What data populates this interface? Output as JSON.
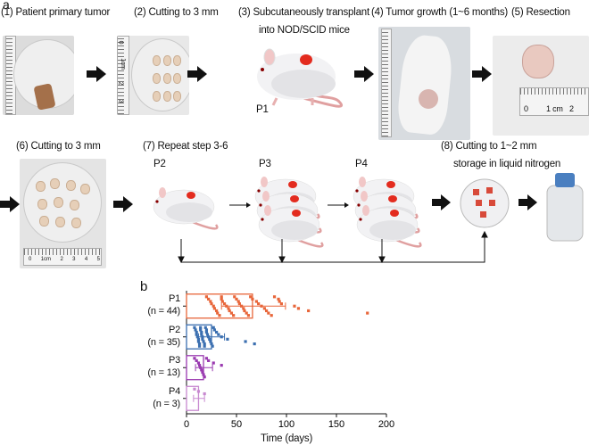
{
  "panel_a": {
    "label": "a",
    "steps": {
      "s1": "(1) Patient primary tumor",
      "s2": "(2) Cutting to 3 mm",
      "s3_line1": "(3) Subcutaneously transplant",
      "s3_line2": "into NOD/SCID mice",
      "s4": "(4) Tumor growth (1~6 months)",
      "s5": "(5) Resection",
      "s6": "(6) Cutting to 3 mm",
      "s7": "(7) Repeat step 3-6",
      "s8_line1": "(8) Cutting to 1~2 mm",
      "s8_line2": "storage in liquid nitrogen"
    },
    "passages": {
      "p1": "P1",
      "p2": "P2",
      "p3": "P3",
      "p4": "P4"
    },
    "ruler_labels": {
      "r5_0": "0",
      "r5_1": "1 cm",
      "r5_2": "2",
      "r2_0": "0",
      "r2_1": "1cm",
      "r2_2": "2",
      "r2_3": "3",
      "r6": [
        "0",
        "1cm",
        "2",
        "3",
        "4",
        "5"
      ]
    }
  },
  "chart_data": {
    "panel_label": "b",
    "type": "bar",
    "orientation": "horizontal",
    "xlabel": "Time (days)",
    "xlim": [
      0,
      200
    ],
    "xticks": [
      "0",
      "50",
      "100",
      "150",
      "200"
    ],
    "categories": [
      {
        "name": "P1",
        "n_label": "(n = 44)",
        "color": "#e8663a",
        "mean": 66,
        "err": [
          35,
          99
        ],
        "points": [
          20,
          22,
          24,
          25,
          27,
          28,
          30,
          31,
          33,
          35,
          35,
          36,
          38,
          40,
          42,
          43,
          45,
          47,
          48,
          50,
          52,
          53,
          55,
          57,
          58,
          60,
          62,
          64,
          66,
          70,
          72,
          75,
          78,
          80,
          82,
          85,
          88,
          92,
          93,
          95,
          108,
          112,
          122,
          181
        ]
      },
      {
        "name": "P2",
        "n_label": "(n = 35)",
        "color": "#3b6fb0",
        "mean": 25,
        "err": [
          12,
          38
        ],
        "points": [
          8,
          9,
          10,
          10,
          11,
          12,
          12,
          13,
          13,
          14,
          14,
          15,
          15,
          16,
          16,
          17,
          18,
          18,
          19,
          20,
          20,
          21,
          22,
          23,
          24,
          25,
          26,
          27,
          28,
          30,
          32,
          35,
          41,
          59,
          68
        ]
      },
      {
        "name": "P3",
        "n_label": "(n = 13)",
        "color": "#9a3ab0",
        "mean": 17,
        "err": [
          9,
          26
        ],
        "points": [
          8,
          10,
          12,
          13,
          14,
          15,
          16,
          17,
          18,
          20,
          22,
          27,
          35
        ]
      },
      {
        "name": "P4",
        "n_label": "(n = 3)",
        "color": "#c889d0",
        "mean": 12,
        "err": [
          7,
          18
        ],
        "points": [
          8,
          12,
          18
        ]
      }
    ]
  }
}
